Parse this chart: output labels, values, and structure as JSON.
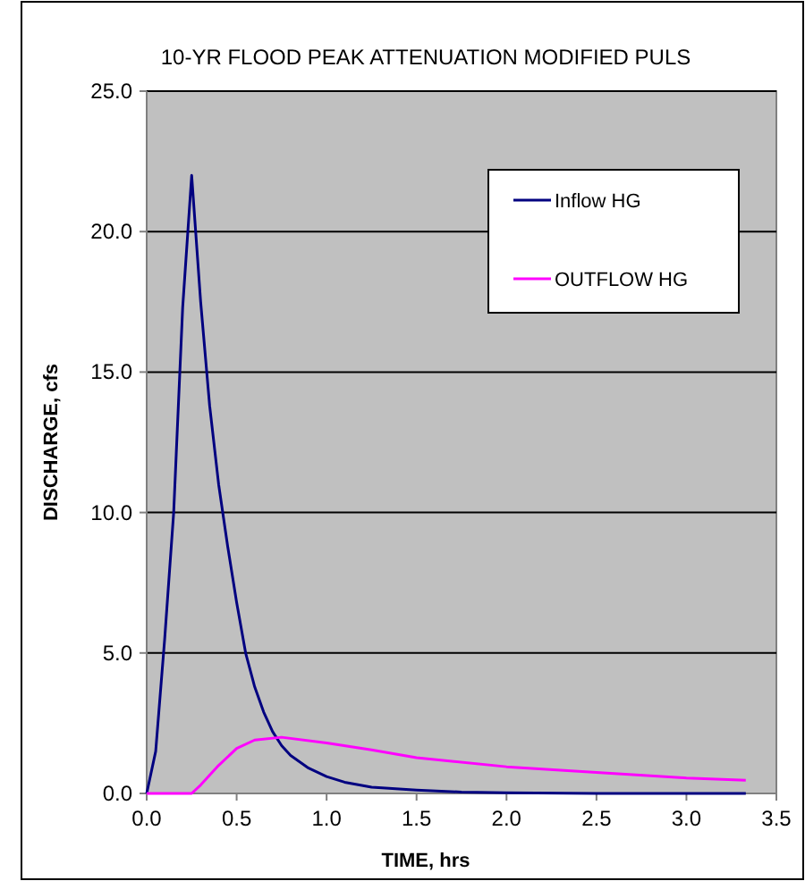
{
  "chart_data": {
    "type": "line",
    "title": "10-YR FLOOD PEAK ATTENUATION MODIFIED PULS",
    "xlabel": "TIME, hrs",
    "ylabel": "DISCHARGE, cfs",
    "xlim": [
      0,
      3.5
    ],
    "xticks": [
      {
        "value": 0,
        "label": "0.0"
      },
      {
        "value": 0.5,
        "label": "0.5"
      },
      {
        "value": 1,
        "label": "1.0"
      },
      {
        "value": 1.5,
        "label": "1.5"
      },
      {
        "value": 2,
        "label": "2.0"
      },
      {
        "value": 2.5,
        "label": "2.5"
      },
      {
        "value": 3,
        "label": "3.0"
      },
      {
        "value": 3.5,
        "label": "3.5"
      }
    ],
    "ylim": [
      0,
      25
    ],
    "yticks": [
      {
        "value": 0,
        "label": "0.0"
      },
      {
        "value": 5,
        "label": "5.0"
      },
      {
        "value": 10,
        "label": "10.0"
      },
      {
        "value": 15,
        "label": "15.0"
      },
      {
        "value": 20,
        "label": "20.0"
      },
      {
        "value": 25,
        "label": "25.0"
      }
    ],
    "grid": "y",
    "legend": "top right",
    "marker": "none",
    "line_style": "solid",
    "series": [
      {
        "name": "Inflow HG",
        "color": "#000080",
        "x": [
          0,
          0.05,
          0.1,
          0.15,
          0.2,
          0.25,
          0.3,
          0.35,
          0.4,
          0.45,
          0.5,
          0.55,
          0.6,
          0.65,
          0.7,
          0.75,
          0.8,
          0.9,
          1.0,
          1.1,
          1.25,
          1.5,
          1.75,
          2.0,
          2.5,
          3.33
        ],
        "values": [
          0,
          1.5,
          5.5,
          10,
          17.3,
          22.0,
          17.5,
          13.8,
          11,
          8.8,
          6.8,
          5.0,
          3.8,
          2.9,
          2.2,
          1.7,
          1.35,
          0.9,
          0.6,
          0.4,
          0.22,
          0.12,
          0.05,
          0.02,
          0,
          0
        ]
      },
      {
        "name": "OUTFLOW  HG",
        "color": "#ff00ff",
        "x": [
          0,
          0.25,
          0.3,
          0.4,
          0.5,
          0.6,
          0.75,
          1.0,
          1.25,
          1.5,
          2.0,
          2.5,
          3.0,
          3.33
        ],
        "values": [
          0,
          0,
          0.3,
          1.0,
          1.6,
          1.9,
          2.0,
          1.8,
          1.55,
          1.27,
          0.95,
          0.75,
          0.55,
          0.47
        ]
      }
    ]
  }
}
